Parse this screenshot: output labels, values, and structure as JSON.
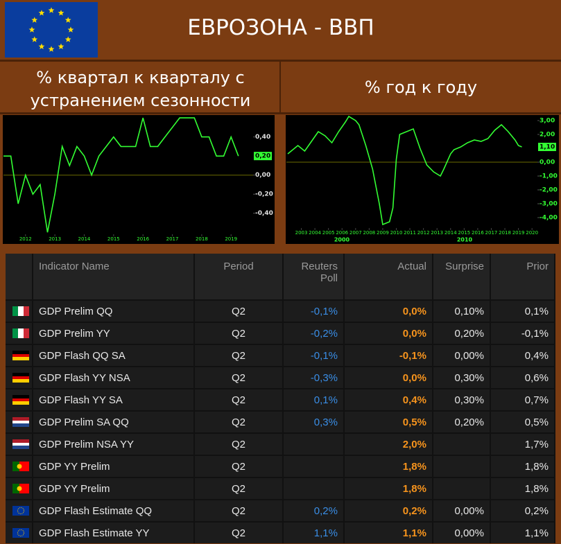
{
  "header": {
    "title": "ЕВРОЗОНА - ВВП"
  },
  "chart_data": [
    {
      "type": "line",
      "title": "% квартал к кварталу с устранением сезонности",
      "x": [
        2011.25,
        2011.5,
        2011.75,
        2012,
        2012.25,
        2012.5,
        2012.75,
        2013,
        2013.25,
        2013.5,
        2013.75,
        2014,
        2014.25,
        2014.5,
        2014.75,
        2015,
        2015.25,
        2015.5,
        2015.75,
        2016,
        2016.25,
        2016.5,
        2016.75,
        2017,
        2017.25,
        2017.5,
        2017.75,
        2018,
        2018.25,
        2018.5,
        2018.75,
        2019,
        2019.25
      ],
      "series": [
        {
          "color": "#33ff33",
          "values": [
            0.2,
            0.2,
            -0.3,
            0.0,
            -0.2,
            -0.1,
            -0.6,
            -0.2,
            0.3,
            0.1,
            0.3,
            0.2,
            0.0,
            0.2,
            0.3,
            0.4,
            0.3,
            0.3,
            0.3,
            0.6,
            0.3,
            0.3,
            0.4,
            0.5,
            0.6,
            0.6,
            0.6,
            0.4,
            0.4,
            0.2,
            0.2,
            0.4,
            0.2
          ]
        }
      ],
      "xlim": [
        2011.25,
        2019.75
      ],
      "xticks": [
        2012,
        2013,
        2014,
        2015,
        2016,
        2017,
        2018,
        2019
      ],
      "ylim": [
        -0.62,
        0.63
      ],
      "yticks": [
        {
          "value": 0.4,
          "label": "0,40"
        },
        {
          "value": 0,
          "label": "0,00"
        },
        {
          "value": -0.2,
          "label": "-0,20"
        },
        {
          "value": -0.4,
          "label": "-0,40"
        }
      ],
      "last_value": {
        "value": 0.2,
        "label": "0,20"
      }
    },
    {
      "type": "line",
      "title": "% год к году",
      "x": [
        2002,
        2002.75,
        2003.25,
        2003.75,
        2004.25,
        2004.75,
        2005.25,
        2005.75,
        2006.25,
        2006.5,
        2007,
        2007.25,
        2007.75,
        2008.25,
        2008.75,
        2009,
        2009.5,
        2009.75,
        2010,
        2010.25,
        2010.75,
        2011.25,
        2011.75,
        2012.25,
        2012.75,
        2013.25,
        2013.5,
        2014,
        2014.25,
        2014.75,
        2015.25,
        2015.75,
        2016.25,
        2016.75,
        2017.25,
        2017.75,
        2018.25,
        2018.75,
        2019,
        2019.25
      ],
      "series": [
        {
          "color": "#33ff33",
          "values": [
            0.6,
            1.2,
            0.8,
            1.5,
            2.2,
            1.9,
            1.4,
            2.2,
            2.9,
            3.3,
            3.0,
            2.7,
            1.2,
            -0.5,
            -3.0,
            -4.5,
            -4.3,
            -3.3,
            0.2,
            2.0,
            2.2,
            2.4,
            1.0,
            -0.2,
            -0.7,
            -1.0,
            -0.5,
            0.6,
            0.9,
            1.1,
            1.4,
            1.6,
            1.5,
            1.7,
            2.3,
            2.7,
            2.2,
            1.6,
            1.2,
            1.1
          ]
        }
      ],
      "xlim": [
        2001.9,
        2020.4
      ],
      "xticks": [
        2003,
        2004,
        2005,
        2006,
        2007,
        2008,
        2009,
        2010,
        2011,
        2012,
        2013,
        2014,
        2015,
        2016,
        2017,
        2018,
        2019,
        2020
      ],
      "decade_labels": [
        "2000",
        "2010"
      ],
      "ylim": [
        -4.6,
        3.4
      ],
      "yticks": [
        {
          "value": 3,
          "label": "3,00"
        },
        {
          "value": 2,
          "label": "2,00"
        },
        {
          "value": 0,
          "label": "0,00"
        },
        {
          "value": -1,
          "label": "-1,00"
        },
        {
          "value": -2,
          "label": "-2,00"
        },
        {
          "value": -3,
          "label": "-3,00"
        },
        {
          "value": -4,
          "label": "-4,00"
        }
      ],
      "last_value": {
        "value": 1.1,
        "label": "1,10"
      }
    }
  ],
  "table": {
    "columns": [
      "Indicator Name",
      "Period",
      "Reuters Poll",
      "Actual",
      "Surprise",
      "Prior"
    ],
    "rows": [
      [
        "GDP Prelim QQ",
        "Q2",
        "-0,1%",
        "0,0%",
        "0,10%",
        "0,1%"
      ],
      [
        "GDP Prelim YY",
        "Q2",
        "-0,2%",
        "0,0%",
        "0,20%",
        "-0,1%"
      ],
      [
        "GDP Flash QQ SA",
        "Q2",
        "-0,1%",
        "-0,1%",
        "0,00%",
        "0,4%"
      ],
      [
        "GDP Flash YY NSA",
        "Q2",
        "-0,3%",
        "0,0%",
        "0,30%",
        "0,6%"
      ],
      [
        "GDP Flash YY SA",
        "Q2",
        "0,1%",
        "0,4%",
        "0,30%",
        "0,7%"
      ],
      [
        "GDP Prelim SA QQ",
        "Q2",
        "0,3%",
        "0,5%",
        "0,20%",
        "0,5%"
      ],
      [
        "GDP Prelim NSA YY",
        "Q2",
        null,
        "2,0%",
        null,
        "1,7%"
      ],
      [
        "GDP YY Prelim",
        "Q2",
        null,
        "1,8%",
        null,
        "1,8%"
      ],
      [
        "GDP YY Prelim",
        "Q2",
        null,
        "1,8%",
        null,
        "1,8%"
      ],
      [
        "GDP Flash Estimate QQ",
        "Q2",
        "0,2%",
        "0,2%",
        "0,00%",
        "0,2%"
      ],
      [
        "GDP Flash Estimate YY",
        "Q2",
        "1,1%",
        "1,1%",
        "0,00%",
        "1,1%"
      ]
    ]
  }
}
